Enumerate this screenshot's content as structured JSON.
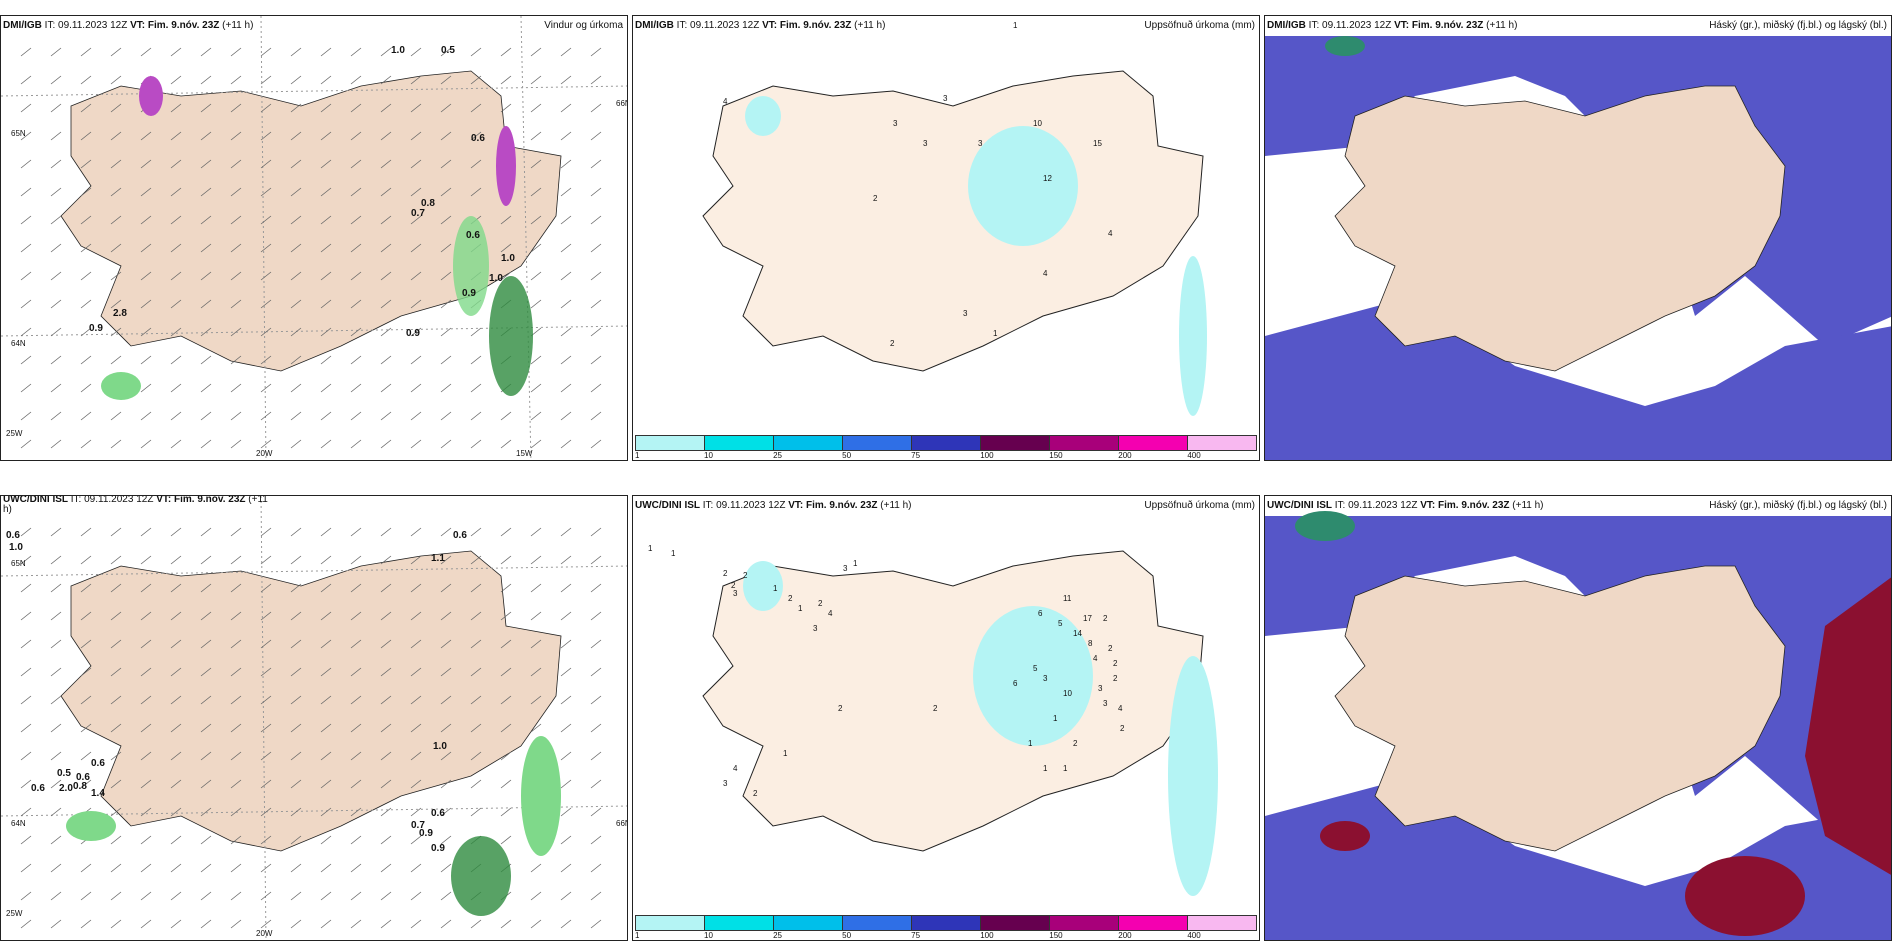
{
  "panels": {
    "p1": {
      "model": "DMI/IGB",
      "init": "IT: 09.11.2023 12Z",
      "valid": "VT: Fim. 9.nóv. 23Z",
      "lead": "(+11 h)",
      "title": "Vindur og úrkoma",
      "grid": {
        "lat_left": "65N",
        "lat_left2": "64N",
        "lat_right": "66N",
        "lon1": "20W",
        "lon2": "15W",
        "corner": "25W"
      },
      "values": [
        "1.0",
        "0.5",
        "0.6",
        "1.0",
        "1.0",
        "0.9",
        "0.9",
        "0.9",
        "2.8",
        "0.6",
        "0.8",
        "0.7"
      ]
    },
    "p2": {
      "model": "DMI/IGB",
      "init": "IT: 09.11.2023 12Z",
      "valid": "VT: Fim. 9.nóv. 23Z",
      "lead": "(+11 h)",
      "title": "Uppsöfnuð úrkoma (mm)",
      "values": [
        "1",
        "4",
        "3",
        "3",
        "3",
        "3",
        "10",
        "15",
        "12",
        "2",
        "4",
        "3",
        "2",
        "1",
        "4"
      ]
    },
    "p3": {
      "model": "DMI/IGB",
      "init": "IT: 09.11.2023 12Z",
      "valid": "VT: Fim. 9.nóv. 23Z",
      "lead": "(+11 h)",
      "title": "Háský (gr.), miðský (fj.bl.) og lágský (bl.)"
    },
    "p4": {
      "model": "UWC/DINI ISL",
      "init": "IT: 09.11.2023 12Z",
      "valid": "VT: Fim. 9.nóv. 23Z",
      "lead": "(+11",
      "lead2": "h)",
      "title": "",
      "grid": {
        "lat_left": "65N",
        "lat_left2": "64N",
        "lat_right": "66N",
        "lon1": "20W",
        "corner": "25W"
      },
      "values": [
        "0.6",
        "1.0",
        "0.6",
        "1.1",
        "0.6",
        "0.6",
        "2.0",
        "0.6",
        "0.8",
        "0.5",
        "1.4",
        "1.0",
        "0.6",
        "0.7",
        "0.9",
        "0.9"
      ]
    },
    "p5": {
      "model": "UWC/DINI ISL",
      "init": "IT: 09.11.2023 12Z",
      "valid": "VT: Fim. 9.nóv. 23Z",
      "lead": "(+11 h)",
      "title": "Uppsöfnuð úrkoma (mm)",
      "values": [
        "1",
        "1",
        "2",
        "2",
        "2",
        "3",
        "1",
        "1",
        "2",
        "1",
        "2",
        "4",
        "3",
        "3",
        "11",
        "6",
        "5",
        "17",
        "14",
        "2",
        "8",
        "2",
        "4",
        "5",
        "3",
        "6",
        "10",
        "2",
        "2",
        "3",
        "3",
        "4",
        "2",
        "1",
        "1",
        "1",
        "2",
        "4",
        "3",
        "2",
        "1",
        "2",
        "1",
        "2"
      ]
    },
    "p6": {
      "model": "UWC/DINI ISL",
      "init": "IT: 09.11.2023 12Z",
      "valid": "VT: Fim. 9.nóv. 23Z",
      "lead": "(+11 h)",
      "title": "Háský (gr.), miðský (fj.bl.) og lágský (bl.)"
    }
  },
  "colorbar": {
    "ticks": [
      "1",
      "10",
      "25",
      "50",
      "75",
      "100",
      "150",
      "200",
      "400"
    ],
    "colors": [
      "#b4f4f4",
      "#00e0e6",
      "#00bfea",
      "#2f6fe6",
      "#2e35b8",
      "#66004f",
      "#a8007a",
      "#f400b0",
      "#f8b8f0"
    ]
  },
  "colors": {
    "land": "#efd8c6",
    "land_panel2": "#fbeee2",
    "precip_green": "#7fd98a",
    "precip_dark": "#2e8b3e",
    "snow_purple": "#b94bc4",
    "cloud_high": "#5656c8",
    "cloud_low": "#8b1030",
    "cloud_mid": "#3f7fe0"
  }
}
